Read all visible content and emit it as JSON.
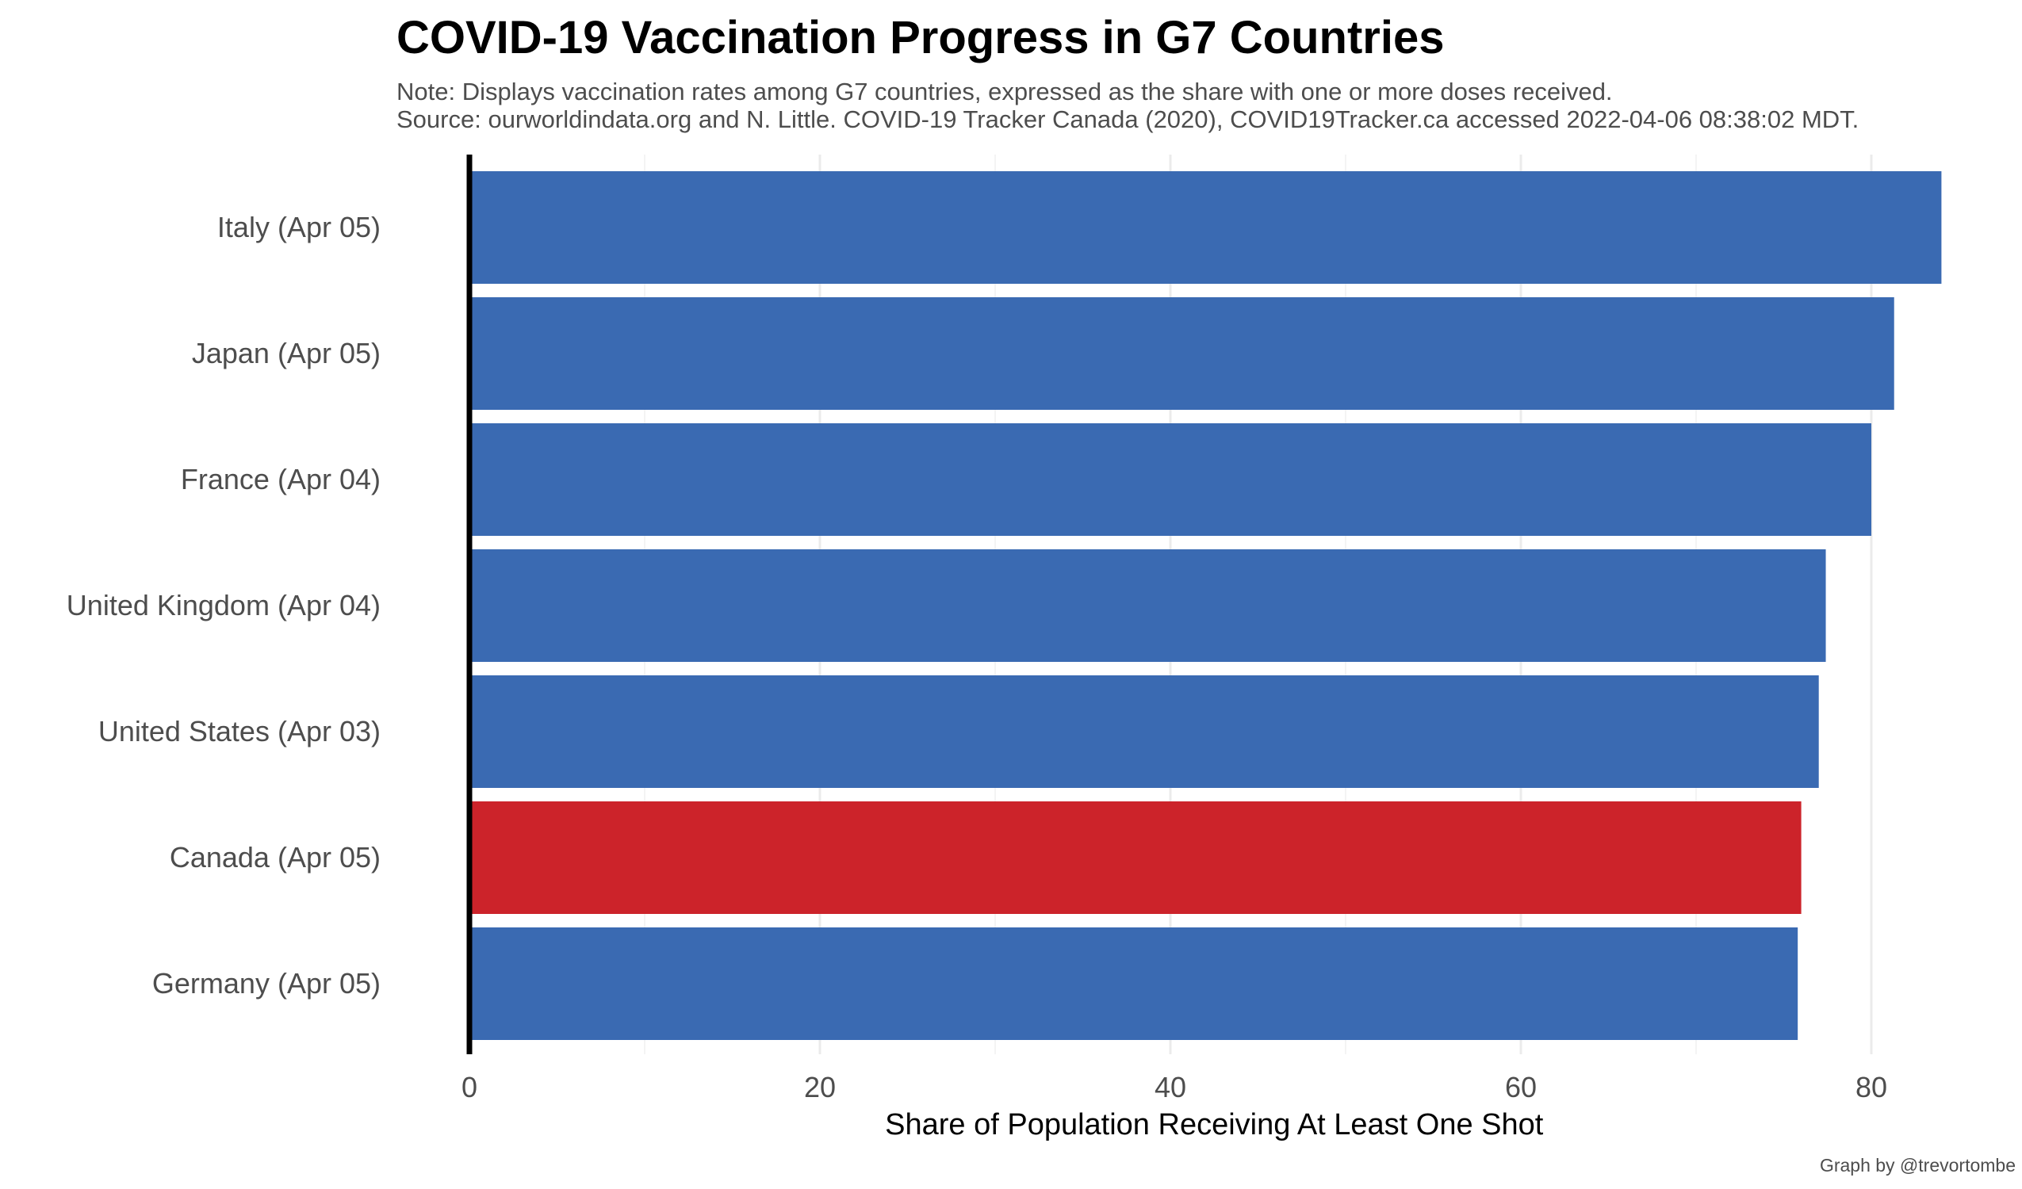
{
  "chart_data": {
    "type": "bar",
    "orientation": "horizontal",
    "title": "COVID-19 Vaccination Progress in G7 Countries",
    "subtitle_note": "Note: Displays vaccination rates among G7 countries, expressed as the share with one or more doses received.",
    "subtitle_source": "Source: ourworldindata.org and N. Little. COVID-19 Tracker Canada (2020), COVID19Tracker.ca accessed 2022-04-06 08:38:02  MDT.",
    "xlabel": "Share of Population Receiving At Least One Shot",
    "ylabel": "",
    "caption": "Graph by @trevortombe",
    "xlim": [
      0,
      85
    ],
    "xticks": [
      0,
      20,
      40,
      60,
      80
    ],
    "grid": "vertical gridlines",
    "categories": [
      "Italy (Apr 05)",
      "Japan (Apr 05)",
      "France (Apr 04)",
      "United Kingdom (Apr 04)",
      "United States (Apr 03)",
      "Canada (Apr 05)",
      "Germany (Apr 05)"
    ],
    "values": [
      84.0,
      81.3,
      80.0,
      77.4,
      77.0,
      76.0,
      75.8
    ],
    "bar_colors": [
      "#3a6ab2",
      "#3a6ab2",
      "#3a6ab2",
      "#3a6ab2",
      "#3a6ab2",
      "#cc232a",
      "#3a6ab2"
    ]
  },
  "colors": {
    "default_bar": "#3a6ab2",
    "highlight_bar": "#cc232a",
    "gridline": "#ebebeb",
    "axis_text": "#4d4d4d",
    "baseline": "#000000"
  }
}
